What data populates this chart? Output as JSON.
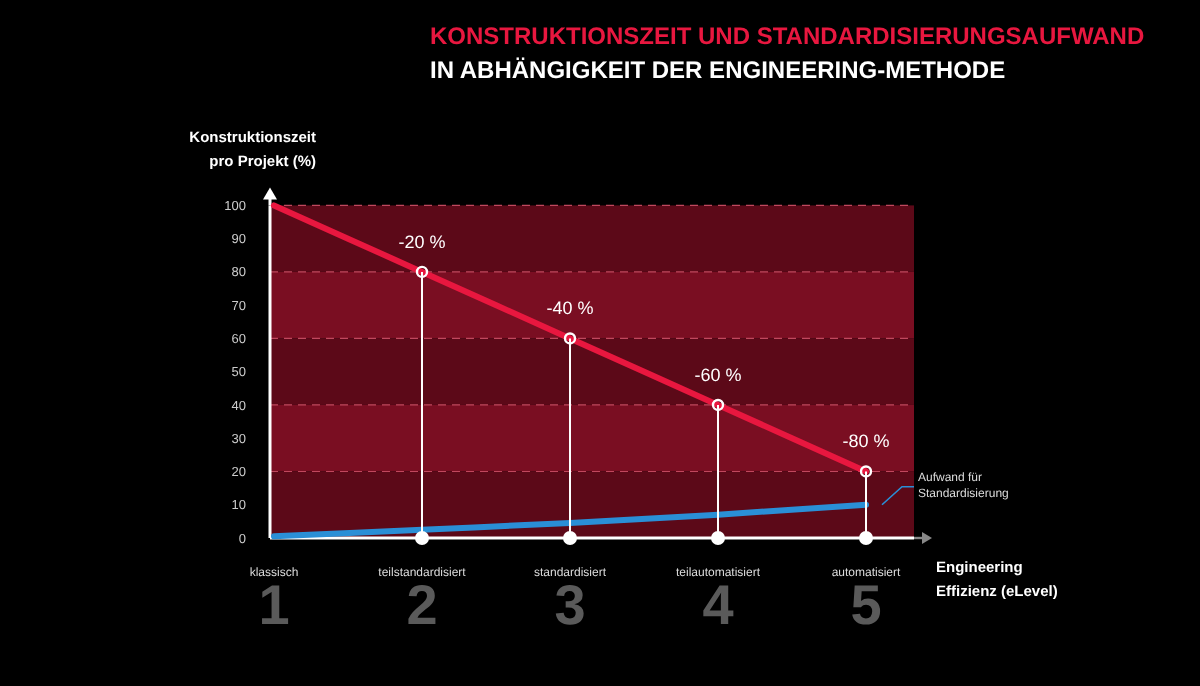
{
  "chart_data": {
    "type": "line",
    "title": "KONSTRUKTIONSZEIT UND STANDARDISIERUNGSAUFWAND",
    "subtitle": "IN ABHÄNGIGKEIT DER ENGINEERING-METHODE",
    "ylabel": "Konstruktionszeit pro Projekt (%)",
    "xlabel": "Engineering Effizienz (eLevel)",
    "categories": [
      "1 klassisch",
      "2 teilstandardisiert",
      "3 standardisiert",
      "4 teilautomatisiert",
      "5 automatisiert"
    ],
    "ylim": [
      0,
      100
    ],
    "yticks": [
      0,
      10,
      20,
      30,
      40,
      50,
      60,
      70,
      80,
      90,
      100
    ],
    "bands": [
      {
        "axis": "y",
        "from": 0,
        "to": 20,
        "color": "#5c0918"
      },
      {
        "axis": "y",
        "from": 20,
        "to": 40,
        "color": "#7a0e22"
      },
      {
        "axis": "y",
        "from": 40,
        "to": 60,
        "color": "#5c0918"
      },
      {
        "axis": "y",
        "from": 60,
        "to": 80,
        "color": "#7a0e22"
      },
      {
        "axis": "y",
        "from": 80,
        "to": 100,
        "color": "#5c0918"
      }
    ],
    "series": [
      {
        "color": "#e8173f",
        "values": [
          100,
          80,
          60,
          40,
          20
        ]
      },
      {
        "name": "Aufwand für Standardisierung",
        "color": "#2a8fd6",
        "values": [
          0.5,
          2.5,
          4.5,
          7,
          10
        ]
      },
      {
        "type": "lollipop",
        "color": "#ffffff",
        "x": [
          "2 teilstandardisiert",
          "3 standardisiert",
          "4 teilautomatisiert",
          "5 automatisiert"
        ],
        "values": [
          80,
          60,
          40,
          20
        ]
      }
    ],
    "annotations": [
      {
        "text": "-20 %",
        "x": "2 teilstandardisiert",
        "y": 80
      },
      {
        "text": "-40 %",
        "x": "3 standardisiert",
        "y": 60
      },
      {
        "text": "-60 %",
        "x": "4 teilautomatisiert",
        "y": 40
      },
      {
        "text": "-80 %",
        "x": "5 automatisiert",
        "y": 20
      }
    ],
    "legend": "right",
    "line_style": "solid",
    "grid": "y"
  }
}
